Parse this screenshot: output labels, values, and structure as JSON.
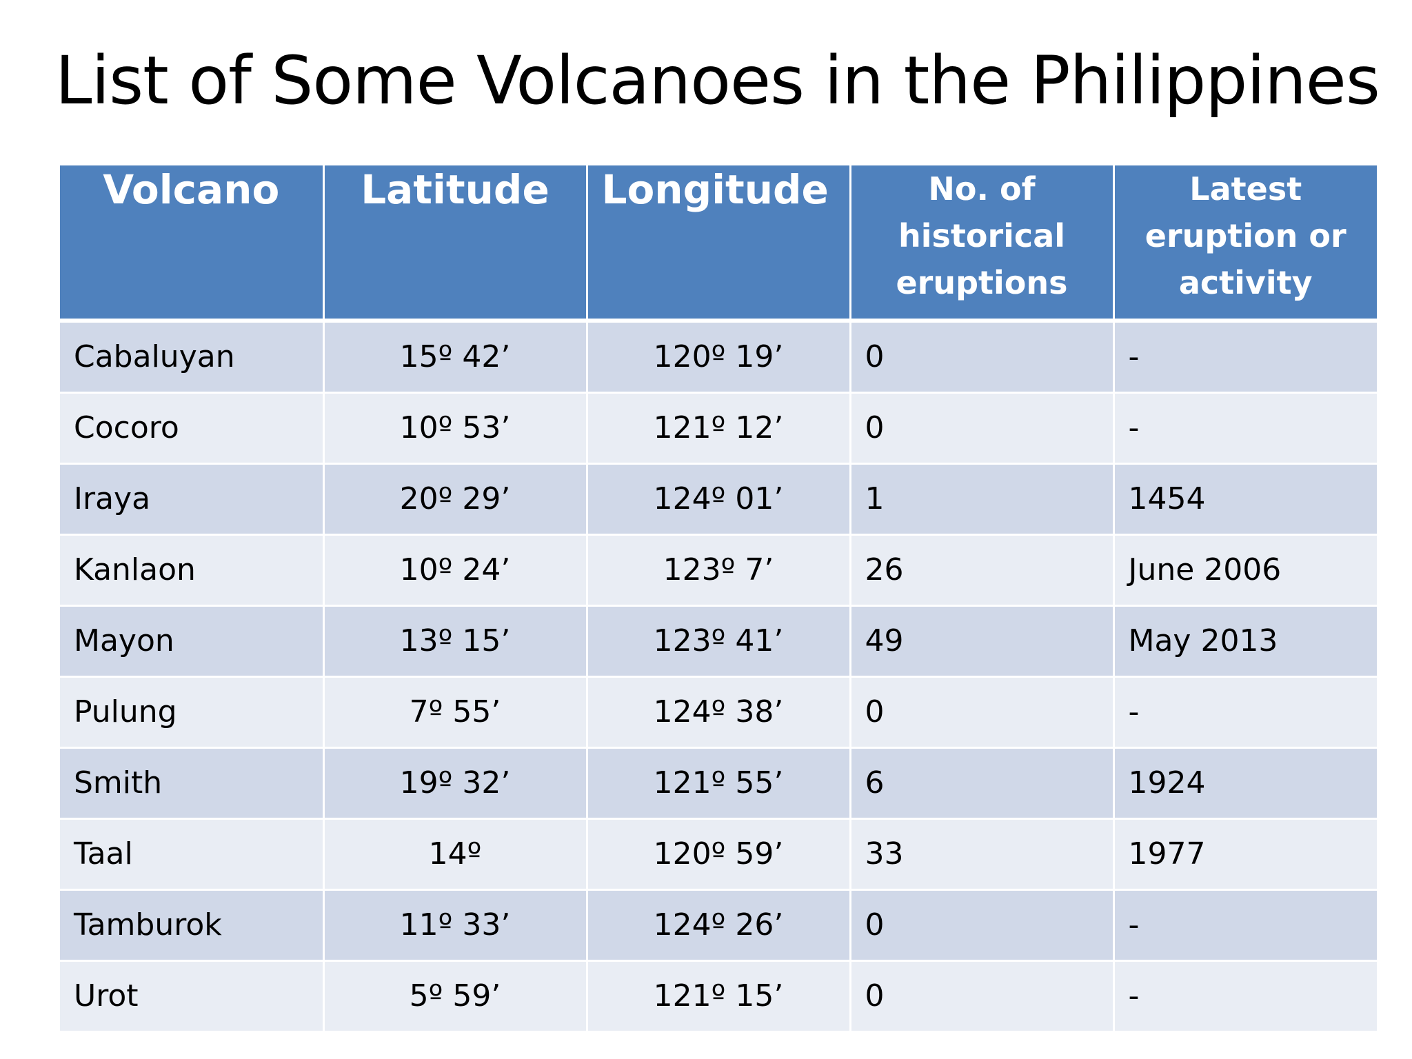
{
  "title": "List of Some Volcanoes in the Philippines",
  "table": {
    "headers": [
      "Volcano",
      "Latitude",
      "Longitude",
      "No. of historical eruptions",
      "Latest eruption or activity"
    ],
    "rows": [
      [
        "Cabaluyan",
        "15º 42’",
        "120º 19’",
        "0",
        "-"
      ],
      [
        "Cocoro",
        "10º 53’",
        "121º 12’",
        "0",
        "-"
      ],
      [
        "Iraya",
        "20º 29’",
        "124º 01’",
        "1",
        "1454"
      ],
      [
        "Kanlaon",
        "10º 24’",
        "123º 7’",
        "26",
        "June 2006"
      ],
      [
        "Mayon",
        "13º 15’",
        "123º 41’",
        "49",
        "May 2013"
      ],
      [
        "Pulung",
        "7º 55’",
        "124º 38’",
        "0",
        "-"
      ],
      [
        "Smith",
        "19º 32’",
        "121º 55’",
        "6",
        "1924"
      ],
      [
        "Taal",
        "14º",
        "120º 59’",
        "33",
        "1977"
      ],
      [
        "Tamburok",
        "11º 33’",
        "124º 26’",
        "0",
        "-"
      ],
      [
        "Urot",
        "5º 59’",
        "121º 15’",
        "0",
        "-"
      ]
    ]
  },
  "colors": {
    "header_bg": "#4f81bd",
    "row_band_dark": "#d0d8e8",
    "row_band_light": "#e9edf4"
  }
}
